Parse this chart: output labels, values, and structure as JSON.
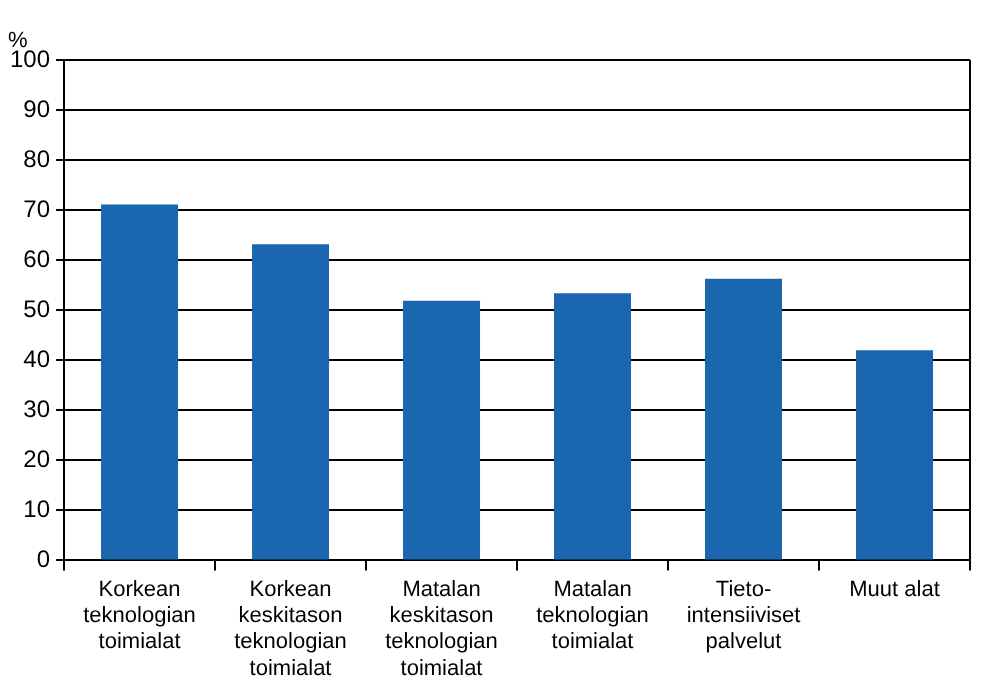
{
  "chart_data": {
    "type": "bar",
    "ylabel": "%",
    "categories": [
      "Korkean teknologian toimialat",
      "Korkean keskitason teknologian toimialat",
      "Matalan keskitason teknologian toimialat",
      "Matalan teknologian toimialat",
      "Tieto-intensiiviset palvelut",
      "Muut alat"
    ],
    "values": [
      71.1,
      63.2,
      51.9,
      53.4,
      56.3,
      42.0
    ],
    "color": "#1a67b0",
    "ylim": [
      0,
      100
    ],
    "yticks": [
      0,
      10,
      20,
      30,
      40,
      50,
      60,
      70,
      80,
      90,
      100
    ],
    "grid": "y",
    "legend": false
  }
}
